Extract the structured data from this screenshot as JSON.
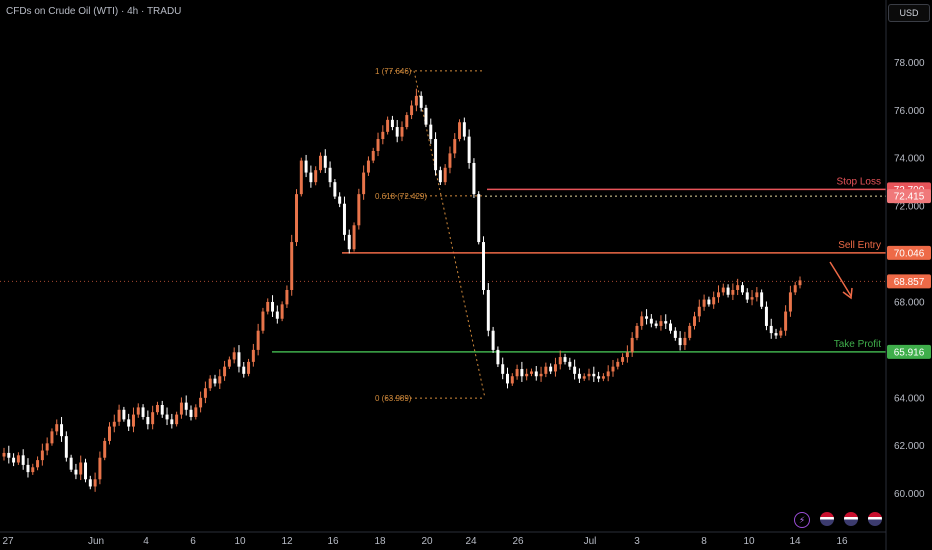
{
  "header": {
    "symbol_title": "CFDs on Crude Oil (WTI) · 4h · TRADU",
    "currency_button": "USD"
  },
  "colors": {
    "background": "#000000",
    "up_candle": "#e8744a",
    "down_candle": "#ffffff",
    "stop_loss": "#e8545a",
    "sell_entry": "#ee6a47",
    "take_profit": "#3fae4b",
    "last_price": "#ee6a47",
    "fib": "#d28b3c",
    "axis_text": "#b8bcc6"
  },
  "icons": [
    "lightning-icon",
    "us-flag-icon",
    "us-flag-icon",
    "us-flag-icon"
  ],
  "chart_data": {
    "type": "candlestick",
    "y_axis": {
      "range": [
        58.4,
        79.6
      ],
      "ticks": [
        "78.000",
        "76.000",
        "74.000",
        "72.000",
        "70.000",
        "68.000",
        "66.000",
        "64.000",
        "62.000",
        "60.000"
      ],
      "tick_values": [
        78,
        76,
        74,
        72,
        70,
        68,
        66,
        64,
        62,
        60
      ]
    },
    "x_axis": {
      "ticks": [
        "27",
        "Jun",
        "4",
        "6",
        "10",
        "12",
        "16",
        "18",
        "20",
        "24",
        "26",
        "Jul",
        "3",
        "8",
        "10",
        "14",
        "16"
      ]
    },
    "levels": [
      {
        "name": "Stop Loss",
        "value": 72.7,
        "label": "72.700"
      },
      {
        "name": "Sell Entry",
        "value": 70.046,
        "label": "70.046"
      },
      {
        "name": "Take Profit",
        "value": 65.916,
        "label": "65.916"
      }
    ],
    "last_price": {
      "value": 68.857,
      "label": "68.857"
    },
    "fib_price": {
      "value": 72.415,
      "label": "72.415"
    },
    "fibonacci": [
      {
        "label": "1 (77.646)",
        "value": 77.646
      },
      {
        "label": "0.618 (72.429)",
        "value": 72.429
      },
      {
        "label": "0 (63.989)",
        "value": 63.989
      }
    ],
    "closes": [
      61.7,
      61.5,
      61.3,
      61.6,
      61.2,
      60.9,
      61.1,
      61.4,
      61.8,
      62.1,
      62.6,
      62.9,
      62.4,
      61.5,
      61.0,
      60.8,
      61.3,
      60.6,
      60.3,
      60.6,
      61.5,
      62.2,
      62.8,
      63.0,
      63.5,
      63.1,
      62.8,
      63.3,
      63.6,
      63.2,
      62.9,
      63.4,
      63.7,
      63.3,
      63.1,
      62.9,
      63.3,
      63.8,
      63.5,
      63.2,
      63.6,
      64.0,
      64.4,
      64.8,
      64.6,
      64.9,
      65.3,
      65.6,
      65.9,
      65.3,
      65.0,
      65.5,
      66.0,
      66.8,
      67.6,
      68.0,
      67.6,
      67.3,
      67.9,
      68.5,
      70.5,
      72.5,
      73.9,
      73.4,
      73.0,
      73.5,
      74.1,
      73.6,
      73.0,
      72.4,
      72.1,
      70.8,
      70.2,
      71.2,
      72.5,
      73.4,
      73.9,
      74.3,
      74.8,
      75.1,
      75.6,
      75.3,
      74.9,
      75.3,
      75.8,
      76.2,
      76.6,
      76.1,
      75.4,
      74.8,
      73.5,
      73.0,
      73.6,
      74.2,
      74.8,
      75.5,
      74.9,
      73.8,
      72.5,
      70.5,
      68.5,
      66.8,
      66.0,
      65.4,
      65.0,
      64.6,
      64.9,
      65.2,
      64.9,
      65.0,
      65.1,
      64.9,
      65.0,
      65.3,
      65.1,
      65.4,
      65.7,
      65.5,
      65.3,
      65.0,
      64.8,
      64.9,
      65.0,
      64.9,
      64.8,
      64.9,
      65.1,
      65.3,
      65.5,
      65.7,
      65.9,
      66.5,
      67.0,
      67.4,
      67.3,
      67.1,
      67.0,
      67.2,
      67.1,
      66.8,
      66.5,
      66.2,
      66.5,
      67.0,
      67.4,
      67.8,
      68.1,
      67.9,
      68.2,
      68.4,
      68.6,
      68.3,
      68.5,
      68.7,
      68.4,
      68.1,
      68.2,
      68.4,
      67.8,
      67.0,
      66.7,
      66.6,
      66.8,
      67.6,
      68.4,
      68.7,
      68.9
    ]
  }
}
